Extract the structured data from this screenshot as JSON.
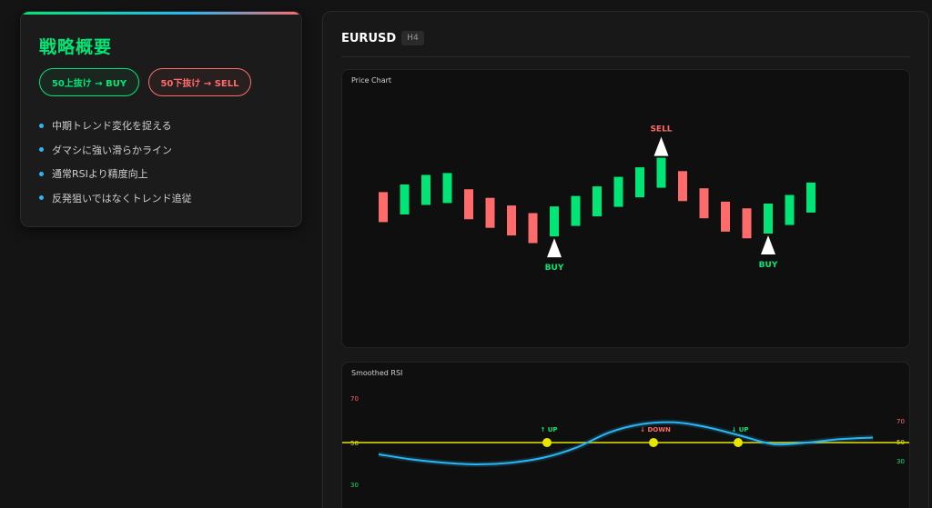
{
  "summary": {
    "title": "戦略概要",
    "buy_rule": "50上抜け → BUY",
    "sell_rule": "50下抜け → SELL",
    "points": [
      "中期トレンド変化を捉える",
      "ダマシに強い滑らかライン",
      "通常RSIより精度向上",
      "反発狙いではなくトレンド追従"
    ]
  },
  "header": {
    "symbol": "EURUSD",
    "timeframe": "H4"
  },
  "price_chart": {
    "label": "Price Chart",
    "colors": {
      "bull": "#00e676",
      "bear": "#ff6b6b",
      "marker": "#ffffff"
    },
    "candles": [
      {
        "dir": "bear",
        "level": 0.42
      },
      {
        "dir": "bull",
        "level": 0.5
      },
      {
        "dir": "bull",
        "level": 0.6
      },
      {
        "dir": "bull",
        "level": 0.62
      },
      {
        "dir": "bear",
        "level": 0.45
      },
      {
        "dir": "bear",
        "level": 0.36
      },
      {
        "dir": "bear",
        "level": 0.28
      },
      {
        "dir": "bear",
        "level": 0.2
      },
      {
        "dir": "bull",
        "level": 0.27
      },
      {
        "dir": "bull",
        "level": 0.38
      },
      {
        "dir": "bull",
        "level": 0.48
      },
      {
        "dir": "bull",
        "level": 0.58
      },
      {
        "dir": "bull",
        "level": 0.68
      },
      {
        "dir": "bull",
        "level": 0.78
      },
      {
        "dir": "bear",
        "level": 0.64
      },
      {
        "dir": "bear",
        "level": 0.46
      },
      {
        "dir": "bear",
        "level": 0.32
      },
      {
        "dir": "bear",
        "level": 0.25
      },
      {
        "dir": "bull",
        "level": 0.3
      },
      {
        "dir": "bull",
        "level": 0.39
      },
      {
        "dir": "bull",
        "level": 0.52
      }
    ],
    "signals": [
      {
        "type": "buy",
        "label": "BUY",
        "candle": 8
      },
      {
        "type": "sell",
        "label": "SELL",
        "candle": 13
      },
      {
        "type": "buy",
        "label": "BUY",
        "candle": 18
      }
    ]
  },
  "rsi_chart": {
    "label": "Smoothed RSI",
    "colors": {
      "line": "#29b6f6",
      "midline": "#e6e600",
      "upper": "#ff6b6b",
      "lower": "#00e676",
      "mid_text": "#e6e600"
    },
    "levels": {
      "upper": "70",
      "mid": "50",
      "lower": "30"
    },
    "values": [
      43,
      40,
      38,
      37,
      38,
      41,
      47,
      56,
      61,
      62,
      59,
      54,
      49,
      50,
      52,
      53
    ],
    "crossings": [
      {
        "label": "↑ UP",
        "dir": "up",
        "value": 50
      },
      {
        "label": "↓ DOWN",
        "dir": "down",
        "value": 50
      },
      {
        "label": "↓ UP",
        "dir": "up",
        "value": 50
      }
    ]
  }
}
